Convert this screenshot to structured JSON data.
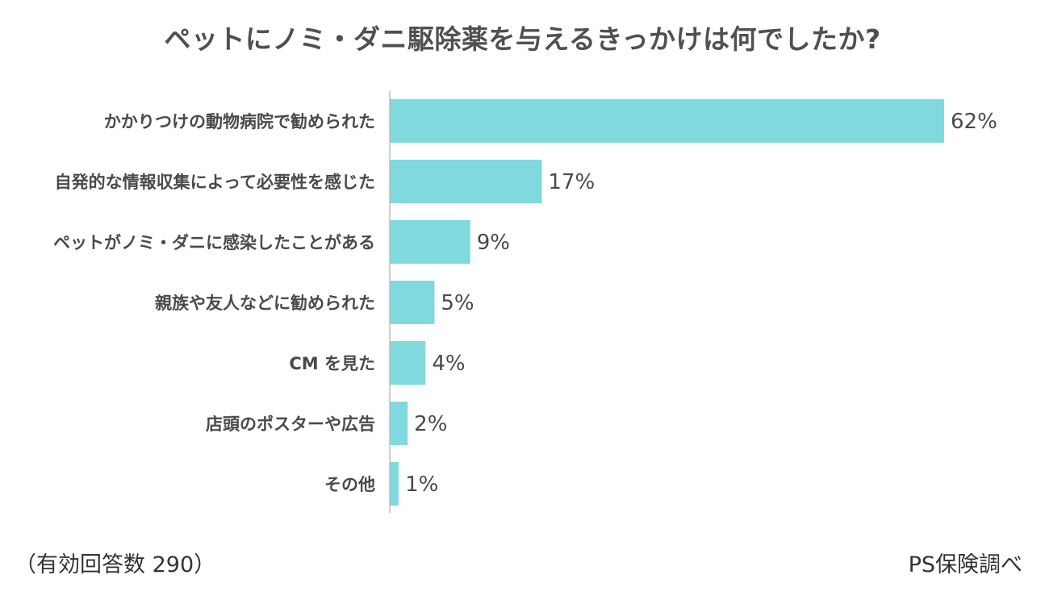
{
  "title": "ペットにノミ・ダニ駆除薬を与えるきっかけは何でしたか?",
  "footnote": "（有効回答数 290）",
  "source": "PS保険調べ",
  "colors": {
    "bar": "#80d9dc",
    "axis": "#bdbdbd",
    "text": "#4a4a4a"
  },
  "chart_data": {
    "type": "bar",
    "orientation": "horizontal",
    "categories": [
      "かかりつけの動物病院で勧められた",
      "自発的な情報収集によって必要性を感じた",
      "ペットがノミ・ダニに感染したことがある",
      "親族や友人などに勧められた",
      "CM を見た",
      "店頭のポスターや広告",
      "その他"
    ],
    "values": [
      62,
      17,
      9,
      5,
      4,
      2,
      1
    ],
    "value_labels": [
      "62%",
      "17%",
      "9%",
      "5%",
      "4%",
      "2%",
      "1%"
    ],
    "unit": "%",
    "xlim": [
      0,
      62
    ],
    "grid": false,
    "legend": "none"
  }
}
